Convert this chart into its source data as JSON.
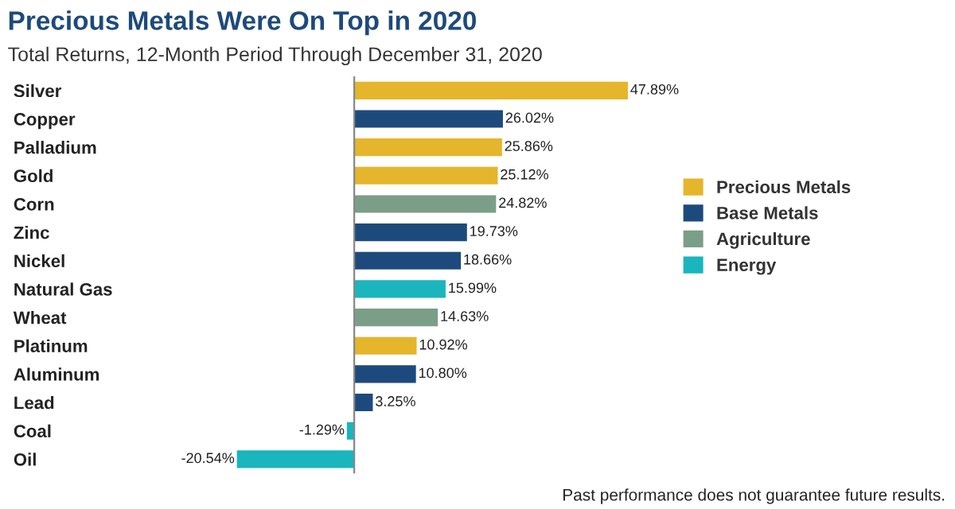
{
  "chart_data": {
    "type": "bar",
    "orientation": "horizontal",
    "title": "Precious Metals Were On Top in 2020",
    "subtitle": "Total Returns, 12-Month Period Through December 31, 2020",
    "categories": [
      "Silver",
      "Copper",
      "Palladium",
      "Gold",
      "Corn",
      "Zinc",
      "Nickel",
      "Natural Gas",
      "Wheat",
      "Platinum",
      "Aluminum",
      "Lead",
      "Coal",
      "Oil"
    ],
    "series": [
      {
        "name": "Precious Metals",
        "color": "#e5b52b",
        "values": [
          47.89,
          null,
          25.86,
          25.12,
          null,
          null,
          null,
          null,
          null,
          10.92,
          null,
          null,
          null,
          null
        ],
        "value_labels": [
          "47.89%",
          null,
          "25.86%",
          "25.12%",
          null,
          null,
          null,
          null,
          null,
          "10.92%",
          null,
          null,
          null,
          null
        ]
      },
      {
        "name": "Base Metals",
        "color": "#1d4a7c",
        "values": [
          null,
          26.02,
          null,
          null,
          null,
          19.73,
          18.66,
          null,
          null,
          null,
          10.8,
          3.25,
          null,
          null
        ],
        "value_labels": [
          null,
          "26.02%",
          null,
          null,
          null,
          "19.73%",
          "18.66%",
          null,
          null,
          null,
          "10.80%",
          "3.25%",
          null,
          null
        ]
      },
      {
        "name": "Agriculture",
        "color": "#7b9e89",
        "values": [
          null,
          null,
          null,
          null,
          24.82,
          null,
          null,
          null,
          14.63,
          null,
          null,
          null,
          null,
          null
        ],
        "value_labels": [
          null,
          null,
          null,
          null,
          "24.82%",
          null,
          null,
          null,
          "14.63%",
          null,
          null,
          null,
          null,
          null
        ]
      },
      {
        "name": "Energy",
        "color": "#1ab5bd",
        "values": [
          null,
          null,
          null,
          null,
          null,
          null,
          null,
          15.99,
          null,
          null,
          null,
          null,
          -1.29,
          -20.54
        ],
        "value_labels": [
          null,
          null,
          null,
          null,
          null,
          null,
          null,
          "15.99%",
          null,
          null,
          null,
          null,
          "-1.29%",
          "-20.54%"
        ]
      }
    ],
    "legend": "right",
    "tick_labels": "y",
    "grid": false,
    "annotations": [
      "Past performance does not guarantee future results."
    ]
  }
}
